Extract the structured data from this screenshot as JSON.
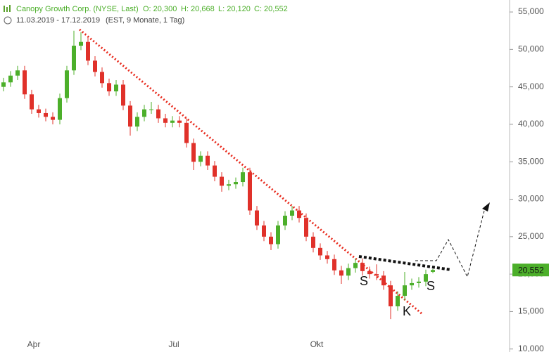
{
  "chart_data": {
    "type": "candlestick",
    "title": "Canopy Growth Corp. (NYSE, Last)",
    "ohlc_labels": [
      "O: 20,300",
      "H: 20,668",
      "L: 20,120",
      "C: 20,552"
    ],
    "period": "11.03.2019 - 17.12.2019",
    "subtitle": "(EST, 9 Monate, 1 Tag)",
    "up_color": "#4caf2a",
    "down_color": "#e0312a",
    "open": [
      45000,
      45600,
      46500,
      47200,
      44000,
      42000,
      41500,
      41000,
      40600,
      43500,
      47200,
      50500,
      51000,
      48500,
      47000,
      45500,
      44400,
      45300,
      42500,
      39700,
      41000,
      42000,
      42000,
      40800,
      40200,
      40500,
      40200,
      37500,
      35000,
      35800,
      34500,
      33000,
      31800,
      32000,
      32300,
      33600,
      28500,
      26500,
      25000,
      24000,
      26500,
      27800,
      28500,
      27500,
      25000,
      23500,
      22500,
      22000,
      20500,
      19800,
      20800,
      21500,
      20400,
      20000,
      19800,
      18500,
      15700,
      17100,
      18500,
      18800,
      19000,
      20300
    ],
    "high": [
      46200,
      47100,
      47800,
      47800,
      44600,
      42600,
      42100,
      41600,
      44100,
      47800,
      52500,
      52300,
      51600,
      49100,
      47600,
      46100,
      45900,
      45900,
      43100,
      41600,
      42600,
      43000,
      42600,
      41400,
      41100,
      41100,
      40800,
      38100,
      36400,
      36400,
      35100,
      33600,
      32600,
      32900,
      34200,
      34200,
      29100,
      27100,
      25600,
      27100,
      28400,
      29100,
      29100,
      28100,
      25600,
      24100,
      23100,
      22600,
      21100,
      21400,
      22100,
      22100,
      21000,
      21300,
      20400,
      19100,
      17700,
      20300,
      19400,
      19600,
      20600,
      20668
    ],
    "low": [
      44400,
      45000,
      45900,
      43400,
      41400,
      40900,
      40400,
      40000,
      40000,
      42900,
      46600,
      49900,
      47900,
      46400,
      44900,
      43800,
      43800,
      41900,
      38500,
      39100,
      40400,
      41400,
      40200,
      39600,
      39600,
      39600,
      36900,
      33900,
      34400,
      33900,
      32400,
      31000,
      31200,
      31400,
      31700,
      27900,
      25900,
      24400,
      23200,
      23400,
      25900,
      27200,
      26900,
      24400,
      22900,
      21900,
      21400,
      19900,
      18700,
      19200,
      20200,
      19800,
      19400,
      19200,
      17900,
      14000,
      15100,
      16500,
      17900,
      18200,
      18400,
      20120
    ],
    "close": [
      45600,
      46500,
      47200,
      44000,
      42000,
      41500,
      41000,
      40600,
      43500,
      47200,
      50500,
      51000,
      48500,
      47000,
      45500,
      44400,
      45300,
      42500,
      39700,
      41000,
      42000,
      42000,
      40800,
      40200,
      40500,
      40200,
      37500,
      35000,
      35800,
      34500,
      33000,
      31800,
      32000,
      32300,
      33600,
      28500,
      26500,
      25000,
      24000,
      26500,
      27800,
      28500,
      27500,
      25000,
      23500,
      22500,
      22000,
      20500,
      19800,
      20800,
      21500,
      20400,
      20000,
      19800,
      18500,
      15700,
      17100,
      18500,
      18800,
      19000,
      20000,
      20552
    ],
    "last_label": "20,552",
    "xlim": [
      -0.5,
      71.9
    ],
    "xticks": [
      {
        "value": 4.3,
        "label": "Apr"
      },
      {
        "value": 24.2,
        "label": "Jul"
      },
      {
        "value": 44.5,
        "label": "Okt"
      }
    ],
    "ylim": [
      9600,
      56600
    ],
    "yticks": [
      {
        "value": 10000,
        "label": "10,000"
      },
      {
        "value": 15000,
        "label": "15,000"
      },
      {
        "value": 20000,
        "label": "20,000"
      },
      {
        "value": 25000,
        "label": "25,000"
      },
      {
        "value": 30000,
        "label": "30,000"
      },
      {
        "value": 35000,
        "label": "35,000"
      },
      {
        "value": 40000,
        "label": "40,000"
      },
      {
        "value": 45000,
        "label": "45,000"
      },
      {
        "value": 50000,
        "label": "50,000"
      },
      {
        "value": 55000,
        "label": "55,000"
      }
    ],
    "annotations": [
      "S",
      "K",
      "S"
    ]
  }
}
